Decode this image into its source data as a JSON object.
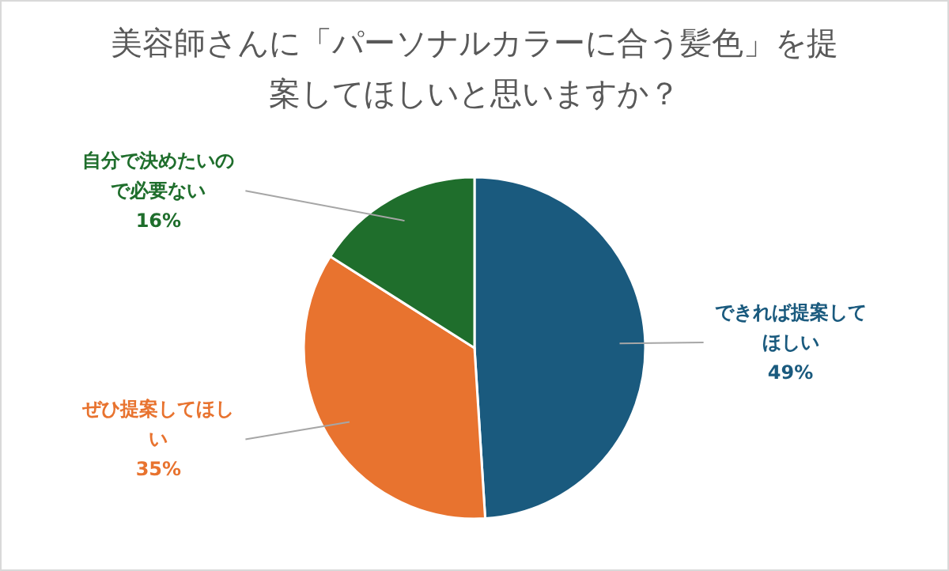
{
  "chart_data": {
    "type": "pie",
    "title": "美容師さんに「パーソナルカラーに合う髪色」を提案してほしいと思いますか？",
    "categories": [
      "できれば提案してほしい",
      "ぜひ提案してほしい",
      "自分で決めたいので必要ない"
    ],
    "values": [
      49,
      35,
      16
    ],
    "colors": [
      "#1a5a7e",
      "#e8732f",
      "#1f6e2c"
    ],
    "value_labels": [
      "49%",
      "35%",
      "16%"
    ],
    "legend": false
  }
}
